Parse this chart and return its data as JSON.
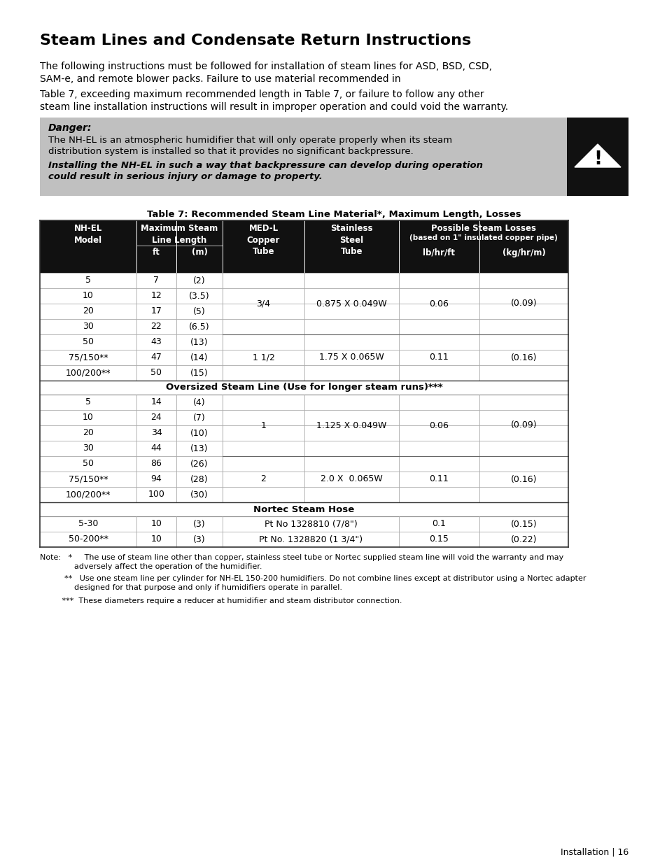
{
  "title": "Steam Lines and Condensate Return Instructions",
  "para1a": "The following instructions must be followed for installation of steam lines for ASD, BSD, CSD,",
  "para1b": "SAM-e, and remote blower packs. Failure to use material recommended in",
  "para2a": "Table 7, exceeding maximum recommended length in Table 7, or failure to follow any other",
  "para2b": "steam line installation instructions will result in improper operation and could void the warranty.",
  "danger_label": "Danger:",
  "danger_text1a": "The NH-EL is an atmospheric humidifier that will only operate properly when its steam",
  "danger_text1b": "distribution system is installed so that it provides no significant backpressure.",
  "danger_text2a": "Installing the NH-EL in such a way that backpressure can develop during operation",
  "danger_text2b": "could result in serious injury or damage to property.",
  "table_title": "Table 7: Recommended Steam Line Material*, Maximum Length, Losses",
  "bg_color": "#ffffff",
  "danger_bg": "#c0c0c0",
  "danger_black_bg": "#111111",
  "table_header_bg": "#111111",
  "footer_text": "Installation | 16",
  "note1a": "Note:   *     The use of steam line other than copper, stainless steel tube or Nortec supplied steam line will void the warranty and may",
  "note1b": "              adversely affect the operation of the humidifier.",
  "note2a": "          **   Use one steam line per cylinder for NH-EL 150-200 humidifiers. Do not combine lines except at distributor using a Nortec adapter",
  "note2b": "              designed for that purpose and only if humidifiers operate in parallel.",
  "note3": "         ***  These diameters require a reducer at humidifier and steam distributor connection."
}
